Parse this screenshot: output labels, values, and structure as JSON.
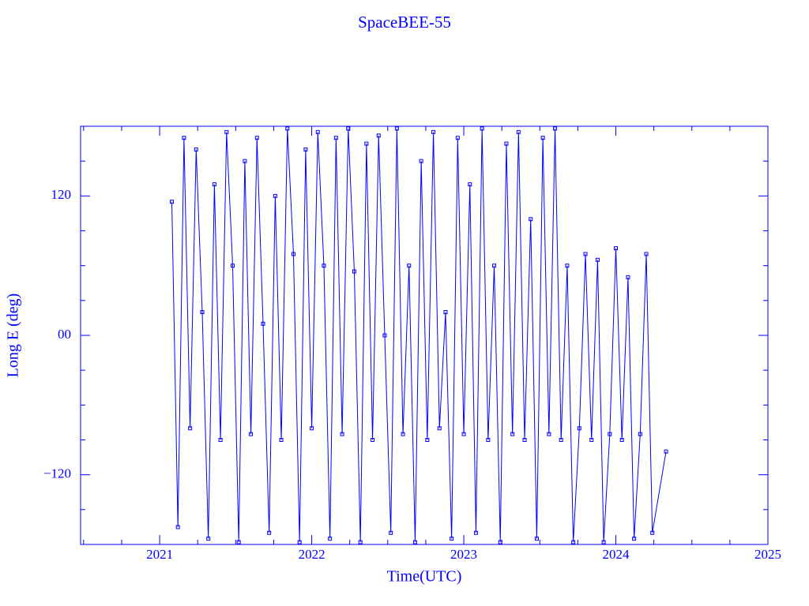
{
  "chart_data": {
    "type": "line",
    "title": "SpaceBEE-55",
    "x_label": "Time(UTC)",
    "y_label": "Long E (deg)",
    "color": "#0000ff",
    "markers": true,
    "xlim": [
      2020.48,
      2025.0
    ],
    "xticks": [
      2021,
      2022,
      2023,
      2024,
      2025
    ],
    "xminorticks": [
      2020.5,
      2020.75,
      2021.25,
      2021.5,
      2021.75,
      2022.25,
      2022.5,
      2022.75,
      2023.25,
      2023.5,
      2023.75,
      2024.25,
      2024.5,
      2024.75
    ],
    "ylim": [
      -180,
      180
    ],
    "yticks": [
      {
        "value": -120,
        "label": "−120"
      },
      {
        "value": 0,
        "label": "00"
      },
      120
    ],
    "yminorticks": [
      -150,
      -90,
      -60,
      -30,
      30,
      60,
      90,
      150
    ],
    "x": [
      2021.08,
      2021.12,
      2021.16,
      2021.2,
      2021.24,
      2021.28,
      2021.32,
      2021.36,
      2021.4,
      2021.44,
      2021.48,
      2021.52,
      2021.56,
      2021.6,
      2021.64,
      2021.68,
      2021.72,
      2021.76,
      2021.8,
      2021.84,
      2021.88,
      2021.92,
      2021.96,
      2022.0,
      2022.04,
      2022.08,
      2022.12,
      2022.16,
      2022.2,
      2022.24,
      2022.28,
      2022.32,
      2022.36,
      2022.4,
      2022.44,
      2022.48,
      2022.52,
      2022.56,
      2022.6,
      2022.64,
      2022.68,
      2022.72,
      2022.76,
      2022.8,
      2022.84,
      2022.88,
      2022.92,
      2022.96,
      2023.0,
      2023.04,
      2023.08,
      2023.12,
      2023.16,
      2023.2,
      2023.24,
      2023.28,
      2023.32,
      2023.36,
      2023.4,
      2023.44,
      2023.48,
      2023.52,
      2023.56,
      2023.6,
      2023.64,
      2023.68,
      2023.72,
      2023.76,
      2023.8,
      2023.84,
      2023.88,
      2023.92,
      2023.96,
      2024.0,
      2024.04,
      2024.08,
      2024.12,
      2024.16,
      2024.2,
      2024.24,
      2024.33
    ],
    "values": [
      115,
      -165,
      170,
      -80,
      160,
      20,
      -175,
      130,
      -90,
      175,
      60,
      -178,
      150,
      -85,
      170,
      10,
      -170,
      120,
      -90,
      178,
      70,
      -178,
      160,
      -80,
      175,
      60,
      -175,
      170,
      -85,
      178,
      55,
      -178,
      165,
      -90,
      172,
      0,
      -170,
      178,
      -85,
      60,
      -178,
      150,
      -90,
      175,
      -80,
      20,
      -175,
      170,
      -85,
      130,
      -170,
      178,
      -90,
      60,
      -178,
      165,
      -85,
      175,
      -90,
      100,
      -175,
      170,
      -85,
      178,
      -90,
      60,
      -178,
      -80,
      70,
      -90,
      65,
      -178,
      -85,
      75,
      -90,
      50,
      -175,
      -85,
      70,
      -170,
      -100
    ]
  }
}
